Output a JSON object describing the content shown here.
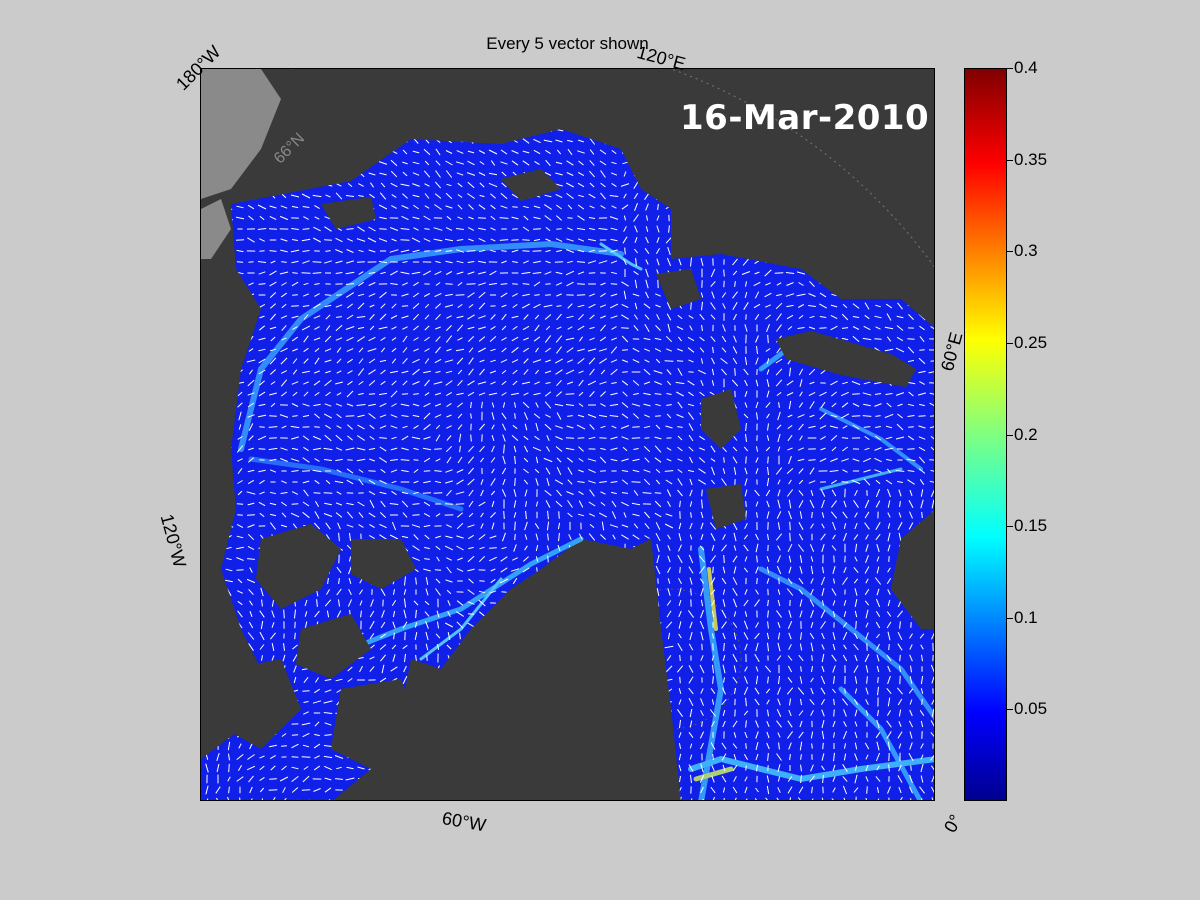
{
  "map": {
    "title": "Every 5 vector shown",
    "date": "16-Mar-2010",
    "edge_labels": {
      "top_left": "180°W",
      "top_center": "120°E",
      "right": "60°E",
      "left": "120°W",
      "bottom_center": "60°W",
      "bottom_right": "0°"
    },
    "latitude_label": "66°N",
    "colors": {
      "land": "#3a3a3a",
      "shelf": "#8a8a8a",
      "ice_field": "#1020e8",
      "vectors": "#ffffff",
      "background": "#cbcbcb"
    }
  },
  "colorbar": {
    "min": 0,
    "max": 0.4,
    "ticks": [
      "0.4",
      "0.35",
      "0.3",
      "0.25",
      "0.2",
      "0.15",
      "0.1",
      "0.05"
    ],
    "colormap": "jet"
  }
}
